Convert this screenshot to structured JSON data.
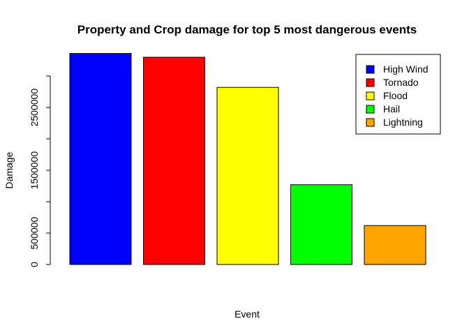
{
  "chart_data": {
    "type": "bar",
    "title": "Property and Crop damage for top 5 most dangerous events",
    "xlabel": "Event",
    "ylabel": "Damage",
    "ylim": [
      0,
      3400000
    ],
    "yticks": [
      0,
      500000,
      1500000,
      2500000
    ],
    "ytick_labels": [
      "0",
      "500000",
      "1500000",
      "2500000"
    ],
    "categories": [
      "High Wind",
      "Tornado",
      "Flood",
      "Hail",
      "Lightning"
    ],
    "values": [
      3360000,
      3300000,
      2820000,
      1270000,
      620000
    ],
    "colors": [
      "#0000FF",
      "#FF0000",
      "#FFFF00",
      "#00FF00",
      "#FFA500"
    ],
    "legend": {
      "placement": "top-right",
      "entries": [
        "High Wind",
        "Tornado",
        "Flood",
        "Hail",
        "Lightning"
      ]
    },
    "grid": false
  }
}
